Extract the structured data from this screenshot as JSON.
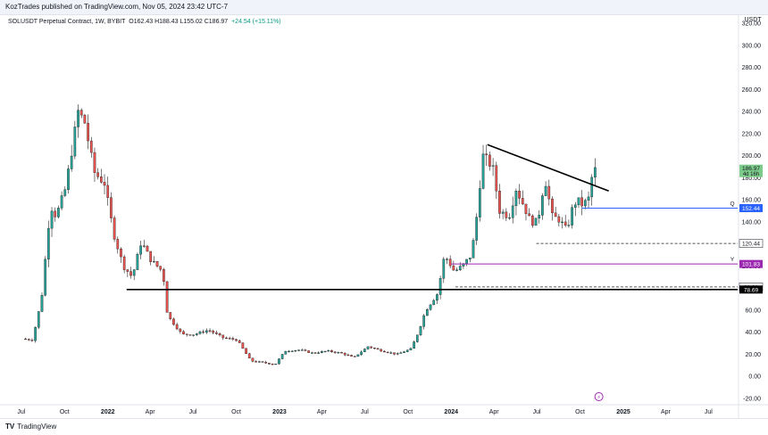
{
  "header": {
    "published": "KozTrades published on TradingView.com, Nov 05, 2024 23:42 UTC-7",
    "symbol_line": "SOLUSDT Perpetual Contract, 1W, BYBIT",
    "ohlc": "O162.43  H188.43  L155.02  C186.97",
    "change": "+24.54 (+15.11%)"
  },
  "footer": {
    "logo_mark": "TV",
    "logo_text": "TradingView"
  },
  "colors": {
    "up": "#26a69a",
    "down": "#ef5350",
    "support_blue": "#2962ff",
    "purple": "#9c27b0",
    "black": "#000000",
    "highlight_green": "#7dcb8a"
  },
  "chart_data": {
    "type": "candlestick",
    "title": "SOLUSDT Perpetual Contract, 1W, BYBIT",
    "currency": "USDT",
    "y_axis": {
      "min": -20,
      "max": 320,
      "ticks": [
        -20,
        0,
        20,
        40,
        60,
        80,
        100,
        120,
        140,
        160,
        180,
        200,
        220,
        240,
        260,
        280,
        300,
        320
      ],
      "tick_labels": [
        "-20.00",
        "0.00",
        "20.00",
        "40.00",
        "60.00",
        "80.00",
        "100.00",
        "120.00",
        "140.00",
        "160.00",
        "180.00",
        "200.00",
        "220.00",
        "240.00",
        "260.00",
        "280.00",
        "300.00",
        "320.00"
      ]
    },
    "x_axis": {
      "start": "2021-06-01",
      "end": "2025-09-01",
      "ticks": [
        {
          "date": "2021-07-01",
          "label": "Jul"
        },
        {
          "date": "2021-10-01",
          "label": "Oct"
        },
        {
          "date": "2022-01-01",
          "label": "2022"
        },
        {
          "date": "2022-04-01",
          "label": "Apr"
        },
        {
          "date": "2022-07-01",
          "label": "Jul"
        },
        {
          "date": "2022-10-01",
          "label": "Oct"
        },
        {
          "date": "2023-01-01",
          "label": "2023"
        },
        {
          "date": "2023-04-01",
          "label": "Apr"
        },
        {
          "date": "2023-07-01",
          "label": "Jul"
        },
        {
          "date": "2023-10-01",
          "label": "Oct"
        },
        {
          "date": "2024-01-01",
          "label": "2024"
        },
        {
          "date": "2024-04-01",
          "label": "Apr"
        },
        {
          "date": "2024-07-01",
          "label": "Jul"
        },
        {
          "date": "2024-10-01",
          "label": "Oct"
        },
        {
          "date": "2025-01-01",
          "label": "2025"
        },
        {
          "date": "2025-04-01",
          "label": "Apr"
        },
        {
          "date": "2025-07-01",
          "label": "Jul"
        }
      ]
    },
    "price_path": [
      [
        "2021-07-10",
        34
      ],
      [
        "2021-08-01",
        33
      ],
      [
        "2021-08-20",
        70
      ],
      [
        "2021-09-08",
        155
      ],
      [
        "2021-09-20",
        145
      ],
      [
        "2021-10-10",
        170
      ],
      [
        "2021-11-06",
        240
      ],
      [
        "2021-11-20",
        230
      ],
      [
        "2021-12-10",
        185
      ],
      [
        "2022-01-01",
        175
      ],
      [
        "2022-01-20",
        130
      ],
      [
        "2022-02-10",
        100
      ],
      [
        "2022-03-01",
        90
      ],
      [
        "2022-03-20",
        122
      ],
      [
        "2022-04-10",
        105
      ],
      [
        "2022-05-05",
        95
      ],
      [
        "2022-05-15",
        55
      ],
      [
        "2022-06-15",
        38
      ],
      [
        "2022-07-10",
        38
      ],
      [
        "2022-08-10",
        42
      ],
      [
        "2022-09-10",
        35
      ],
      [
        "2022-10-10",
        33
      ],
      [
        "2022-11-08",
        14
      ],
      [
        "2022-12-30",
        11
      ],
      [
        "2023-01-20",
        23
      ],
      [
        "2023-02-20",
        24
      ],
      [
        "2023-03-20",
        21
      ],
      [
        "2023-04-20",
        23
      ],
      [
        "2023-05-20",
        21
      ],
      [
        "2023-06-15",
        17
      ],
      [
        "2023-07-15",
        27
      ],
      [
        "2023-08-15",
        23
      ],
      [
        "2023-09-15",
        20
      ],
      [
        "2023-10-15",
        25
      ],
      [
        "2023-10-30",
        40
      ],
      [
        "2023-11-15",
        60
      ],
      [
        "2023-12-10",
        75
      ],
      [
        "2023-12-25",
        110
      ],
      [
        "2024-01-15",
        95
      ],
      [
        "2024-02-01",
        100
      ],
      [
        "2024-02-20",
        110
      ],
      [
        "2024-03-01",
        140
      ],
      [
        "2024-03-15",
        200
      ],
      [
        "2024-04-05",
        190
      ],
      [
        "2024-04-20",
        150
      ],
      [
        "2024-05-10",
        145
      ],
      [
        "2024-05-25",
        170
      ],
      [
        "2024-06-10",
        155
      ],
      [
        "2024-06-25",
        140
      ],
      [
        "2024-07-10",
        140
      ],
      [
        "2024-07-25",
        180
      ],
      [
        "2024-08-10",
        145
      ],
      [
        "2024-08-25",
        142
      ],
      [
        "2024-09-10",
        132
      ],
      [
        "2024-09-20",
        150
      ],
      [
        "2024-10-01",
        160
      ],
      [
        "2024-10-14",
        155
      ],
      [
        "2024-10-28",
        162
      ],
      [
        "2024-11-04",
        186.97
      ]
    ],
    "candle_width_note": "weekly candles",
    "trendline": {
      "from": [
        "2024-03-18",
        210
      ],
      "to": [
        "2024-12-01",
        168
      ],
      "color": "#000000"
    },
    "levels": [
      {
        "value": 152.44,
        "label": "152.44",
        "style": "solid",
        "color": "#2962ff",
        "from": "2024-10-05",
        "tag": "Q"
      },
      {
        "value": 120.44,
        "label": "120.44",
        "style": "dashed",
        "color": "#555555",
        "from": "2024-06-30",
        "tag": ""
      },
      {
        "value": 101.83,
        "label": "101.83",
        "style": "solid",
        "color": "#9c27b0",
        "from": "2024-01-01",
        "tag": "Y"
      },
      {
        "value": 81.01,
        "label": "81.01",
        "style": "dashed",
        "color": "#555555",
        "from": "2024-01-10",
        "tag": ""
      },
      {
        "value": 78.69,
        "label": "78.69",
        "style": "solid",
        "color": "#000000",
        "from": "2022-02-10",
        "tag": ""
      }
    ],
    "last_price": {
      "value": 186.97,
      "label": "186.97",
      "sublabel": "4d 16h",
      "color": "#7dcb8a"
    }
  }
}
